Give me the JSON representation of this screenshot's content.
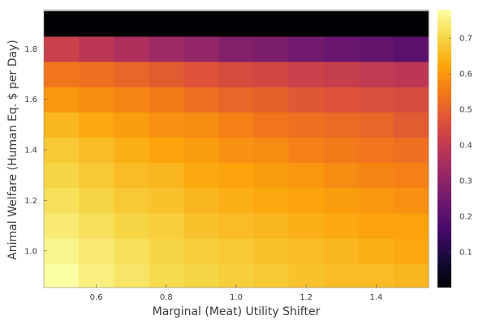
{
  "chart_data": {
    "type": "heatmap",
    "xlabel": "Marginal (Meat) Utility Shifter",
    "ylabel": "Animal Welfare (Human Eq. $ per Day)",
    "x_range": [
      0.45,
      1.55
    ],
    "y_range": [
      0.855,
      1.955
    ],
    "x_ticks": [
      "0.6",
      "0.8",
      "1.0",
      "1.2",
      "1.4"
    ],
    "y_ticks": [
      "1.0",
      "1.2",
      "1.4",
      "1.6",
      "1.8"
    ],
    "colorbar": {
      "colormap": "inferno",
      "range": [
        0.0,
        0.78
      ],
      "ticks": [
        "0.1",
        "0.2",
        "0.3",
        "0.4",
        "0.5",
        "0.6",
        "0.7"
      ]
    },
    "x_centers": [
      0.5,
      0.6,
      0.7,
      0.8,
      0.9,
      1.0,
      1.1,
      1.2,
      1.3,
      1.4,
      1.5
    ],
    "y_centers": [
      0.9,
      1.0,
      1.1,
      1.2,
      1.3,
      1.4,
      1.5,
      1.6,
      1.7,
      1.8,
      1.9
    ],
    "values": [
      [
        0.78,
        0.75,
        0.73,
        0.71,
        0.7,
        0.69,
        0.68,
        0.67,
        0.66,
        0.66,
        0.65
      ],
      [
        0.76,
        0.74,
        0.72,
        0.7,
        0.69,
        0.68,
        0.67,
        0.66,
        0.65,
        0.64,
        0.63
      ],
      [
        0.74,
        0.72,
        0.7,
        0.69,
        0.67,
        0.66,
        0.65,
        0.64,
        0.63,
        0.62,
        0.62
      ],
      [
        0.72,
        0.7,
        0.68,
        0.67,
        0.65,
        0.64,
        0.63,
        0.62,
        0.61,
        0.6,
        0.59
      ],
      [
        0.7,
        0.68,
        0.66,
        0.65,
        0.63,
        0.62,
        0.61,
        0.6,
        0.58,
        0.57,
        0.56
      ],
      [
        0.68,
        0.66,
        0.64,
        0.62,
        0.61,
        0.59,
        0.58,
        0.56,
        0.55,
        0.54,
        0.53
      ],
      [
        0.65,
        0.63,
        0.61,
        0.59,
        0.58,
        0.56,
        0.54,
        0.53,
        0.52,
        0.51,
        0.49
      ],
      [
        0.6,
        0.58,
        0.57,
        0.55,
        0.53,
        0.51,
        0.5,
        0.48,
        0.47,
        0.46,
        0.45
      ],
      [
        0.54,
        0.53,
        0.51,
        0.49,
        0.47,
        0.45,
        0.44,
        0.42,
        0.41,
        0.4,
        0.39
      ],
      [
        0.42,
        0.39,
        0.36,
        0.33,
        0.31,
        0.28,
        0.27,
        0.25,
        0.23,
        0.22,
        0.2
      ],
      [
        0.0,
        0.0,
        0.0,
        0.0,
        0.0,
        0.0,
        0.0,
        0.0,
        0.0,
        0.0,
        0.0
      ]
    ]
  }
}
